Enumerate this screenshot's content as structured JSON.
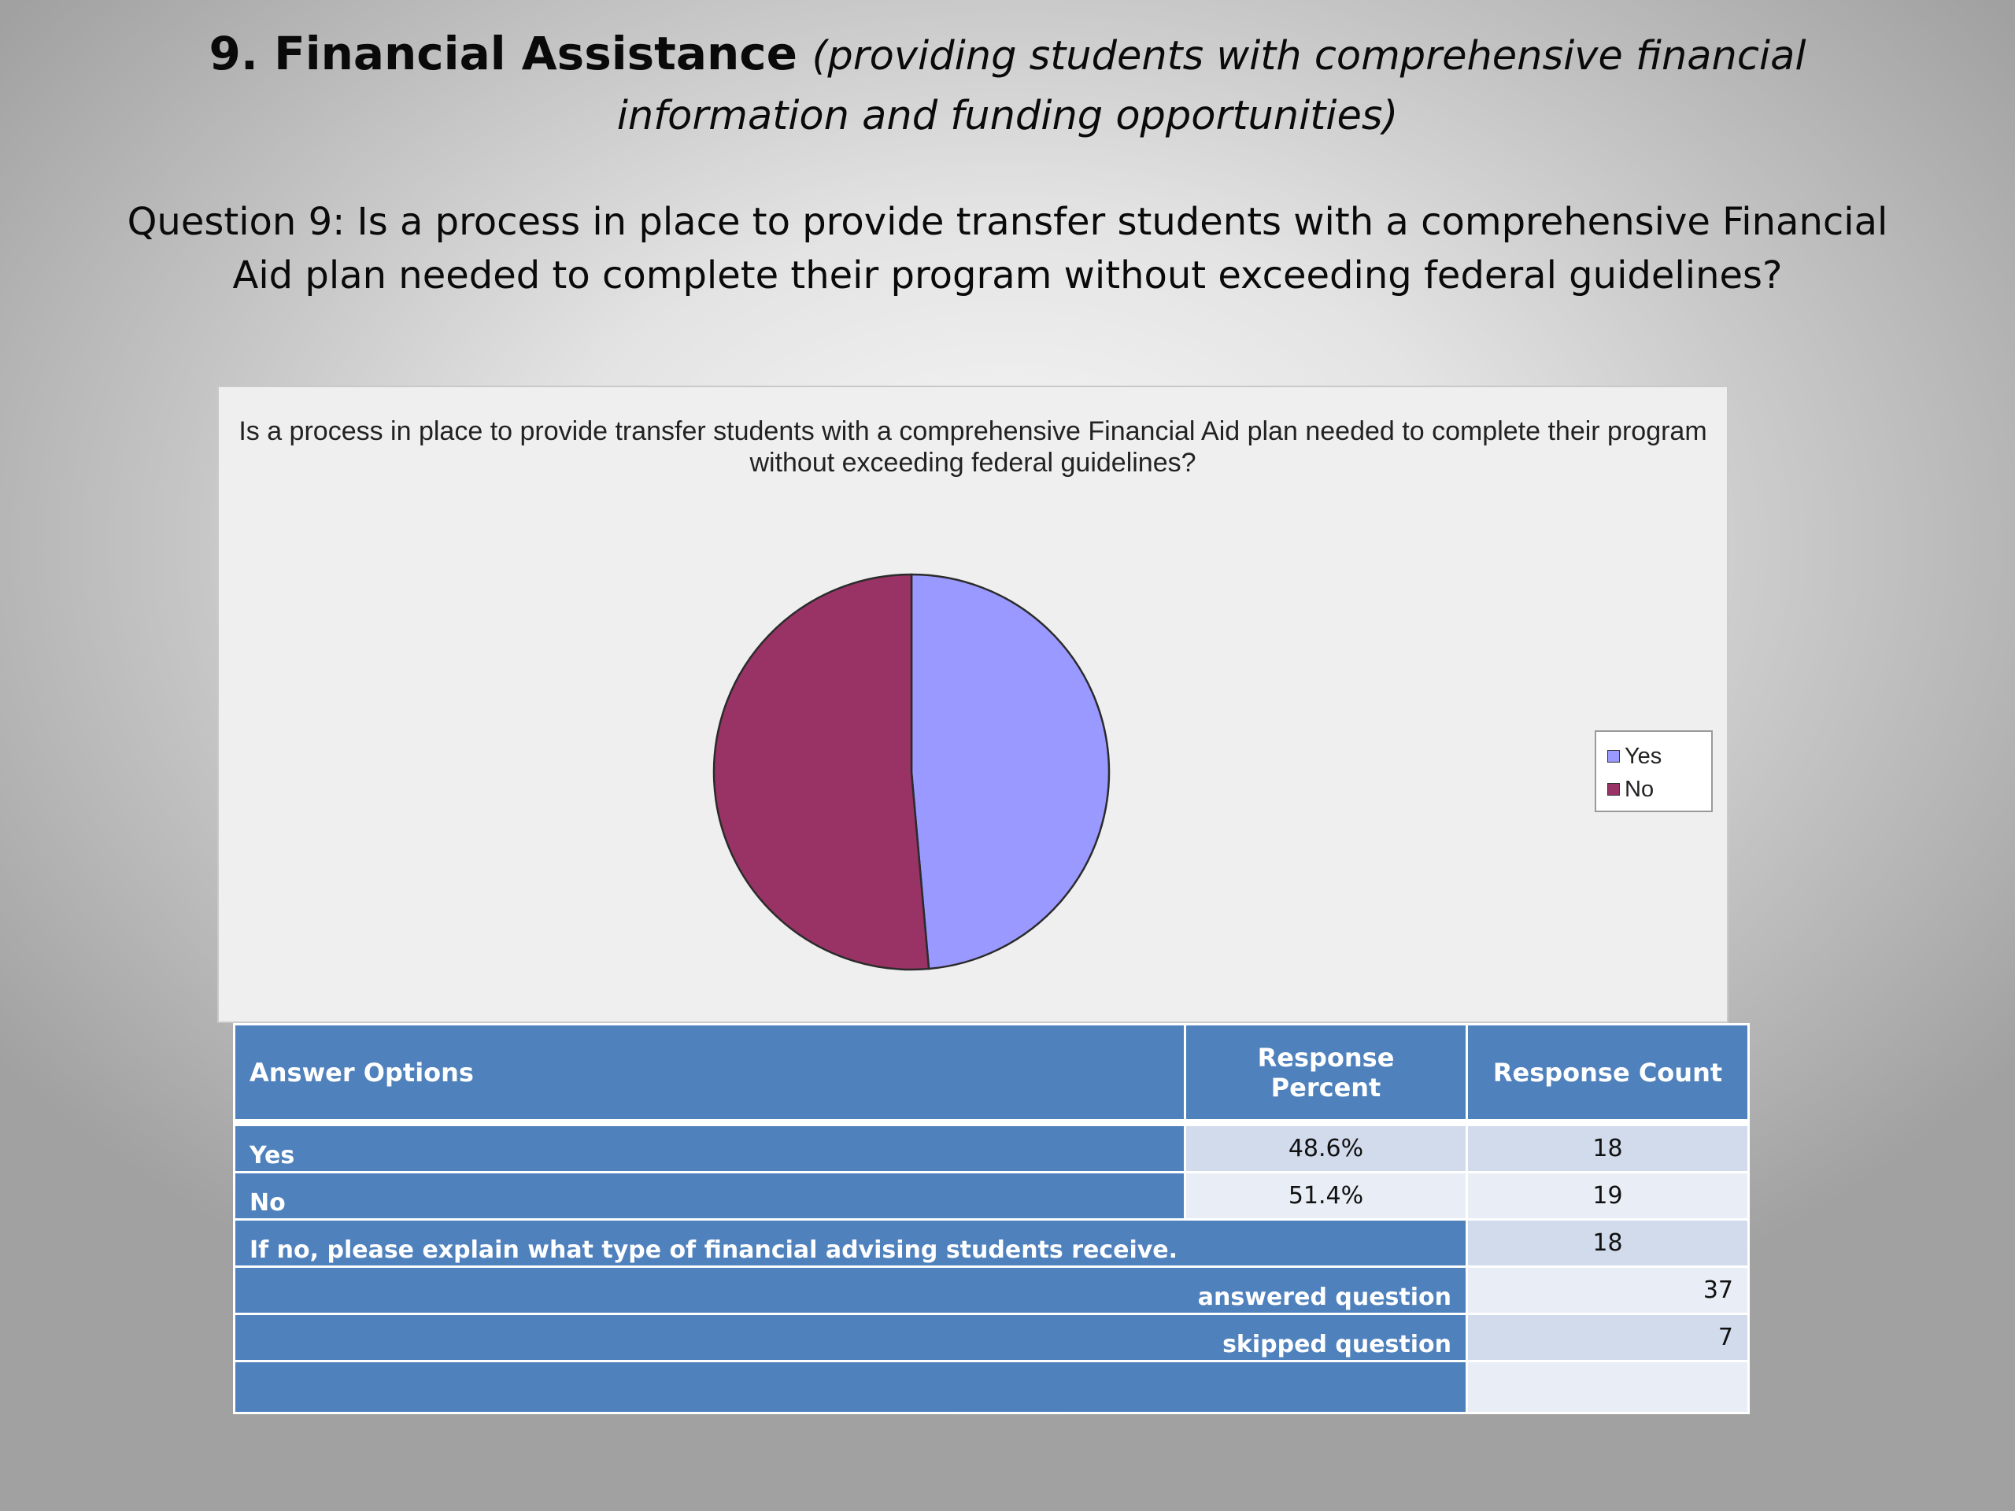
{
  "heading": {
    "main": "9. Financial Assistance",
    "sub": "(providing students with comprehensive financial information and funding opportunities)"
  },
  "question": "Question 9:  Is a process in place to provide transfer students with a comprehensive Financial Aid plan needed to complete their program without exceeding federal guidelines?",
  "chart_data": {
    "type": "pie",
    "title": "Is a process in place to provide transfer students with a comprehensive Financial Aid plan needed to complete their program without exceeding federal guidelines?",
    "categories": [
      "Yes",
      "No"
    ],
    "values": [
      48.6,
      51.4
    ],
    "colors": [
      "#9999ff",
      "#993366"
    ],
    "legend_position": "right"
  },
  "table": {
    "headers": [
      "Answer Options",
      "Response Percent",
      "Response Count"
    ],
    "rows": [
      {
        "label": "Yes",
        "percent": "48.6%",
        "count": "18"
      },
      {
        "label": "No",
        "percent": "51.4%",
        "count": "19"
      }
    ],
    "explain_label": "If no, please explain what type of financial advising students receive.",
    "explain_count": "18",
    "answered_label": "answered question",
    "answered_value": "37",
    "skipped_label": "skipped question",
    "skipped_value": "7"
  },
  "colors": {
    "table_header": "#4f81bd",
    "row_shade_1": "#d2dbec",
    "row_shade_2": "#e9edf5"
  }
}
